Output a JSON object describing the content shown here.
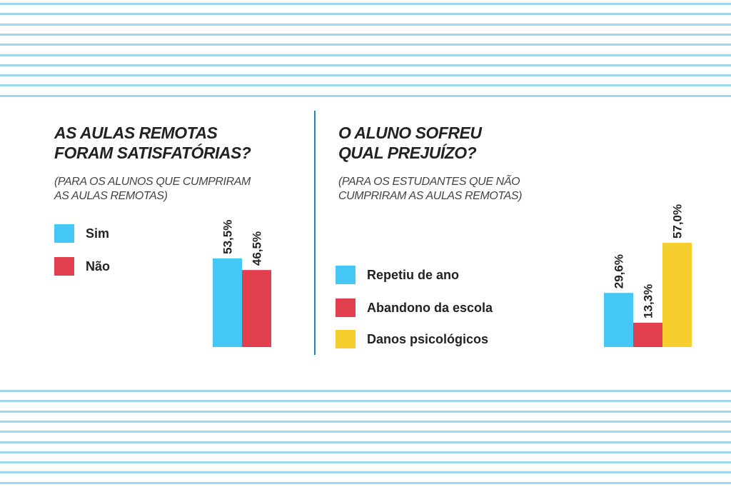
{
  "colors": {
    "stripe": "#9fd8ee",
    "divider": "#1b86b8",
    "blue": "#45c8f5",
    "red": "#e2404f",
    "yellow": "#f6ce2e"
  },
  "left_panel": {
    "title_lines": [
      "AS AULAS REMOTAS",
      "FORAM SATISFATÓRIAS?"
    ],
    "subtitle_lines": [
      "(PARA OS ALUNOS QUE CUMPRIRAM",
      "AS AULAS REMOTAS)"
    ]
  },
  "right_panel": {
    "title_lines": [
      "O ALUNO SOFREU",
      "QUAL PREJUÍZO?"
    ],
    "subtitle_lines": [
      "(PARA OS ESTUDANTES QUE NÃO",
      "CUMPRIRAM AS AULAS REMOTAS)"
    ]
  },
  "chart_data": [
    {
      "type": "bar",
      "title": "AS AULAS REMOTAS FORAM SATISFATÓRIAS?",
      "subtitle": "(PARA OS ALUNOS QUE CUMPRIRAM AS AULAS REMOTAS)",
      "categories": [
        "Sim",
        "Não"
      ],
      "values": [
        53.5,
        46.5
      ],
      "value_labels": [
        "53,5%",
        "46,5%"
      ],
      "colors": [
        "#45c8f5",
        "#e2404f"
      ],
      "legend": [
        "Sim",
        "Não"
      ],
      "legend_placement": "left",
      "grid": false
    },
    {
      "type": "bar",
      "title": "O ALUNO SOFREU QUAL PREJUÍZO?",
      "subtitle": "(PARA OS ESTUDANTES QUE NÃO CUMPRIRAM AS AULAS REMOTAS)",
      "categories": [
        "Repetiu de ano",
        "Abandono da escola",
        "Danos psicológicos"
      ],
      "values": [
        29.6,
        13.3,
        57.0
      ],
      "value_labels": [
        "29,6%",
        "13,3%",
        "57,0%"
      ],
      "colors": [
        "#45c8f5",
        "#e2404f",
        "#f6ce2e"
      ],
      "legend": [
        "Repetiu de ano",
        "Abandono da escola",
        "Danos psicológicos"
      ],
      "legend_placement": "left",
      "grid": false
    }
  ]
}
